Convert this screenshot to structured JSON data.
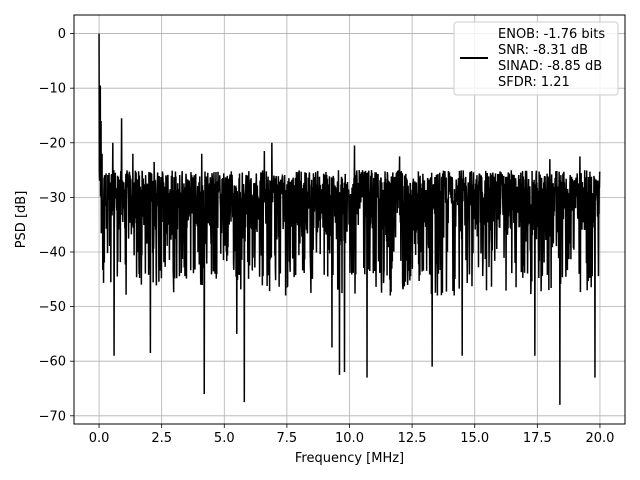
{
  "chart_data": {
    "type": "line",
    "title": "",
    "xlabel": "Frequency [MHz]",
    "ylabel": "PSD [dB]",
    "xlim": [
      -1.0,
      21.0
    ],
    "ylim": [
      -71.5,
      3.4
    ],
    "grid": true,
    "legend_position": "top-right",
    "xticks": [
      0.0,
      2.5,
      5.0,
      7.5,
      10.0,
      12.5,
      15.0,
      17.5,
      20.0
    ],
    "xtick_labels": [
      "0.0",
      "2.5",
      "5.0",
      "7.5",
      "10.0",
      "12.5",
      "15.0",
      "17.5",
      "20.0"
    ],
    "yticks": [
      0,
      -10,
      -20,
      -30,
      -40,
      -50,
      -60,
      -70
    ],
    "ytick_labels": [
      "0",
      "−10",
      "−20",
      "−30",
      "−40",
      "−50",
      "−60",
      "−70"
    ],
    "legend_lines": [
      "ENOB: -1.76 bits",
      "SNR: -8.31 dB",
      "SINAD: -8.85 dB",
      "SFDR: 1.21"
    ],
    "line_color": "#000000",
    "series": [
      {
        "freq_range_mhz": [
          0.0,
          20.0
        ],
        "noise_floor_db": {
          "min": -45,
          "max": -22
        },
        "peaks": [
          {
            "x": 0.0,
            "y": 0.0
          },
          {
            "x": 0.05,
            "y": -9.5
          },
          {
            "x": 0.08,
            "y": -16.0
          },
          {
            "x": 0.12,
            "y": -22.0
          },
          {
            "x": 0.55,
            "y": -20.0
          },
          {
            "x": 0.9,
            "y": -15.5
          },
          {
            "x": 1.35,
            "y": -22.0
          },
          {
            "x": 2.2,
            "y": -23.5
          },
          {
            "x": 4.1,
            "y": -22.0
          },
          {
            "x": 6.6,
            "y": -21.5
          },
          {
            "x": 6.9,
            "y": -20.0
          },
          {
            "x": 10.2,
            "y": -20.5
          },
          {
            "x": 12.0,
            "y": -22.5
          },
          {
            "x": 18.0,
            "y": -23.0
          },
          {
            "x": 19.2,
            "y": -22.5
          }
        ],
        "troughs": [
          {
            "x": 0.6,
            "y": -59.0
          },
          {
            "x": 2.05,
            "y": -58.5
          },
          {
            "x": 4.2,
            "y": -66.0
          },
          {
            "x": 5.8,
            "y": -67.5
          },
          {
            "x": 5.5,
            "y": -55.0
          },
          {
            "x": 9.3,
            "y": -57.5
          },
          {
            "x": 9.6,
            "y": -62.5
          },
          {
            "x": 9.8,
            "y": -62.0
          },
          {
            "x": 10.7,
            "y": -63.0
          },
          {
            "x": 13.3,
            "y": -61.0
          },
          {
            "x": 14.5,
            "y": -59.0
          },
          {
            "x": 17.4,
            "y": -59.0
          },
          {
            "x": 18.4,
            "y": -68.0
          },
          {
            "x": 19.8,
            "y": -63.0
          }
        ]
      }
    ]
  }
}
